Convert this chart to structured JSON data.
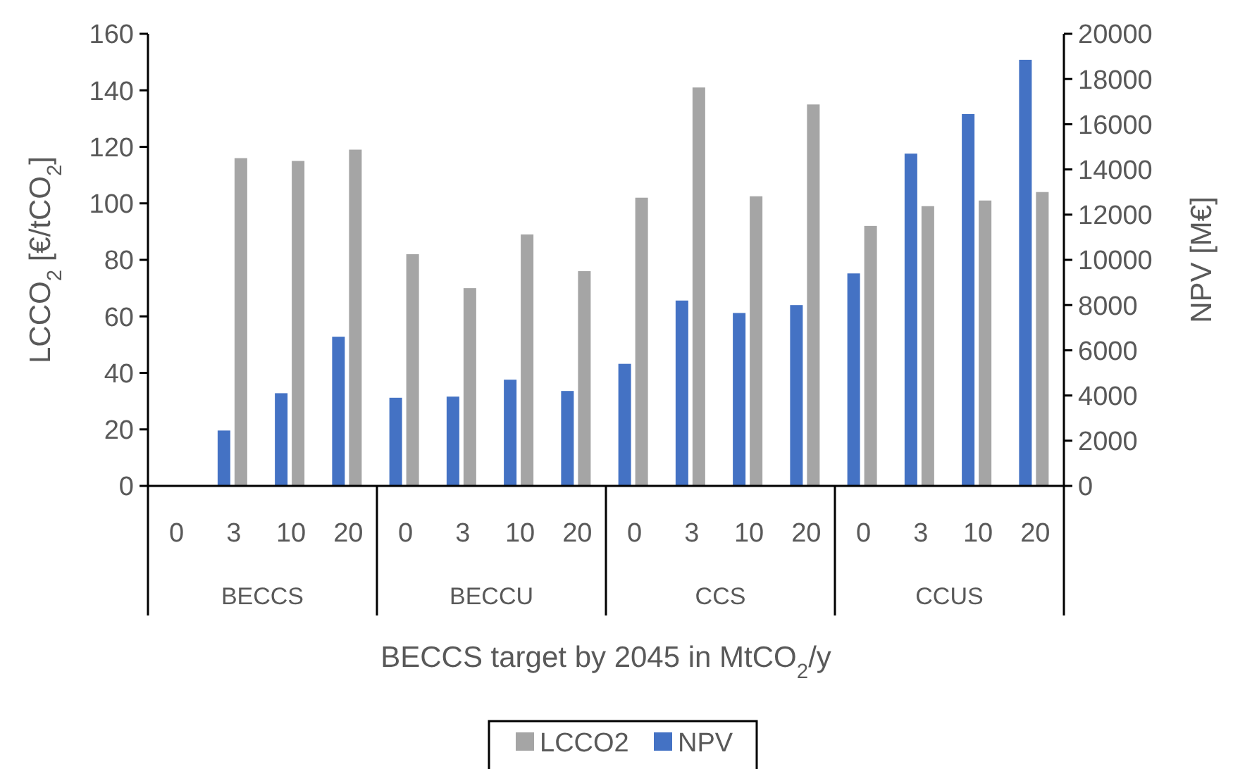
{
  "chart_data": {
    "type": "bar",
    "xlabel": "BECCS target by 2045 in MtCO$_{2}$/y",
    "ylabel": "LCCO$_{2}$ [€/tCO$_{2}$]",
    "y2label": "NPV [M€]",
    "categories": [
      "0",
      "3",
      "10",
      "20",
      "0",
      "3",
      "10",
      "20",
      "0",
      "3",
      "10",
      "20",
      "0",
      "3",
      "10",
      "20"
    ],
    "annotations": [
      "BECCS",
      "BECCU",
      "CCS",
      "CCUS"
    ],
    "series": [
      {
        "name": "NPV",
        "color": "#4472c4",
        "axis": "y2",
        "values": [
          null,
          2450,
          4100,
          6600,
          3900,
          3950,
          4700,
          4200,
          5400,
          8200,
          7650,
          8000,
          9400,
          14700,
          16450,
          18850
        ]
      },
      {
        "name": "LCCO2",
        "color": "#a5a5a5",
        "values": [
          null,
          116,
          115,
          119,
          82,
          70,
          89,
          76,
          102,
          141,
          102.5,
          135,
          92,
          99,
          101,
          104
        ]
      }
    ],
    "ylim": [
      0,
      160
    ],
    "yticks": [
      0,
      20,
      40,
      60,
      80,
      100,
      120,
      140,
      160
    ],
    "y2lim": [
      0,
      20000
    ],
    "y2ticks": [
      0,
      2000,
      4000,
      6000,
      8000,
      10000,
      12000,
      14000,
      16000,
      18000,
      20000
    ],
    "grid": false,
    "legend": "bottom"
  }
}
